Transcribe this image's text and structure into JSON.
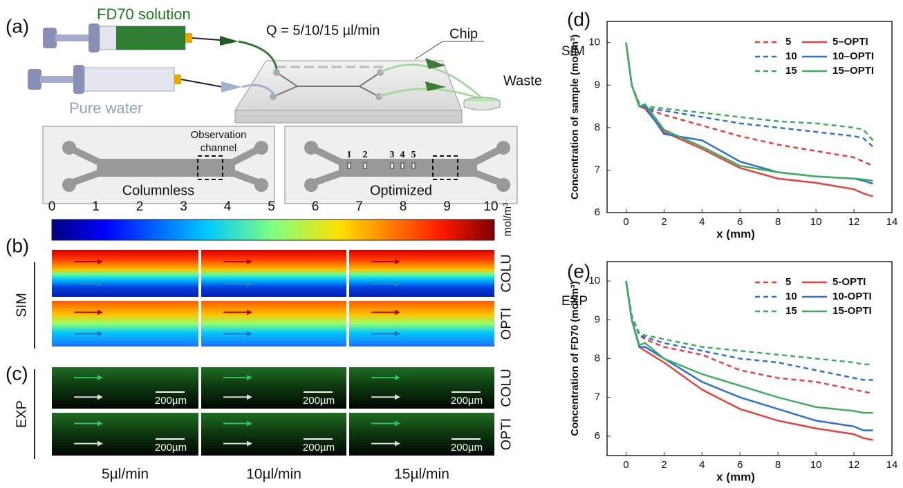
{
  "figure": {
    "panel_labels": [
      "(a)",
      "(b)",
      "(c)"
    ],
    "schematic": {
      "syringe_1": "FD70 solution",
      "syringe_2": "Pure water",
      "flow": "Q = 5/10/15 µl/min",
      "chip": "Chip",
      "waste": "Waste",
      "observation": [
        "Observation",
        "channel"
      ],
      "columnless": "Columnless",
      "optimized": "Optimized",
      "sites": [
        "1",
        "2",
        "3",
        "4",
        "5"
      ]
    },
    "colorbar": {
      "ticks": [
        0,
        1,
        2,
        3,
        4,
        5,
        6,
        7,
        8,
        9,
        10
      ],
      "unit": "mol/m³"
    },
    "rows": {
      "sim": "SIM",
      "exp": "EXP",
      "colu": "COLU",
      "opti": "OPTI"
    },
    "scale_bar": "200µm",
    "columns": [
      "5µl/min",
      "10µl/min",
      "15µl/min"
    ]
  },
  "chart_data": [
    {
      "type": "line",
      "panel": "(d)",
      "annotation": "SIM",
      "x_label": "x (mm)",
      "y_label": "Concentration of sample (mol/m³)",
      "x": [
        0,
        0.3,
        0.7,
        1,
        2,
        4,
        6,
        8,
        10,
        12,
        12.5,
        13
      ],
      "xlim": [
        -1,
        14
      ],
      "xticks": [
        0,
        2,
        4,
        6,
        8,
        10,
        12,
        14
      ],
      "ylim": [
        6,
        10.5
      ],
      "yticks": [
        6,
        7,
        8,
        9,
        10
      ],
      "legend": "upper right",
      "series": [
        {
          "name": "5",
          "color": "#e8403c",
          "dashed": true,
          "values": [
            10,
            9.0,
            8.55,
            8.45,
            8.3,
            8.05,
            7.8,
            7.6,
            7.45,
            7.3,
            7.2,
            7.1
          ]
        },
        {
          "name": "10",
          "color": "#2f6fd8",
          "dashed": true,
          "values": [
            10,
            9.0,
            8.55,
            8.45,
            8.4,
            8.25,
            8.1,
            8.0,
            7.9,
            7.8,
            7.75,
            7.55
          ]
        },
        {
          "name": "15",
          "color": "#3fae5c",
          "dashed": true,
          "values": [
            10,
            9.0,
            8.55,
            8.5,
            8.45,
            8.35,
            8.25,
            8.15,
            8.1,
            8.0,
            7.95,
            7.7
          ]
        },
        {
          "name": "5–OPTI",
          "color": "#e8403c",
          "dashed": false,
          "values": [
            10,
            9.0,
            8.5,
            8.45,
            7.9,
            7.5,
            7.05,
            6.8,
            6.7,
            6.55,
            6.45,
            6.38
          ]
        },
        {
          "name": "10–OPTI",
          "color": "#2f6fd8",
          "dashed": false,
          "values": [
            10,
            9.0,
            8.5,
            8.5,
            7.85,
            7.7,
            7.2,
            6.95,
            6.85,
            6.8,
            6.75,
            6.68
          ]
        },
        {
          "name": "15–OPTI",
          "color": "#3fae5c",
          "dashed": false,
          "values": [
            10,
            9.0,
            8.5,
            8.55,
            7.95,
            7.55,
            7.1,
            6.95,
            6.85,
            6.8,
            6.78,
            6.75
          ]
        }
      ]
    },
    {
      "type": "line",
      "panel": "(e)",
      "annotation": "EXP",
      "x_label": "x (mm)",
      "y_label": "Concentration of FD70 (mol/m³)",
      "x": [
        0,
        0.3,
        0.7,
        1,
        2,
        4,
        6,
        8,
        10,
        12,
        12.5,
        13
      ],
      "xlim": [
        -1,
        14
      ],
      "xticks": [
        0,
        2,
        4,
        6,
        8,
        10,
        12,
        14
      ],
      "ylim": [
        5.5,
        10.5
      ],
      "yticks": [
        6,
        7,
        8,
        9,
        10
      ],
      "legend": "upper right",
      "series": [
        {
          "name": "5",
          "color": "#e8403c",
          "dashed": true,
          "values": [
            10,
            9.1,
            8.6,
            8.5,
            8.3,
            8.1,
            7.7,
            7.5,
            7.4,
            7.2,
            7.15,
            7.1
          ]
        },
        {
          "name": "10",
          "color": "#2f6fd8",
          "dashed": true,
          "values": [
            10,
            9.1,
            8.6,
            8.55,
            8.4,
            8.2,
            8.0,
            7.9,
            7.7,
            7.5,
            7.45,
            7.45
          ]
        },
        {
          "name": "15",
          "color": "#3fae5c",
          "dashed": true,
          "values": [
            10,
            9.1,
            8.65,
            8.6,
            8.5,
            8.3,
            8.2,
            8.1,
            8.0,
            7.9,
            7.85,
            7.85
          ]
        },
        {
          "name": "5-OPTI",
          "color": "#e8403c",
          "dashed": false,
          "values": [
            10,
            9.0,
            8.3,
            8.2,
            7.9,
            7.2,
            6.7,
            6.4,
            6.2,
            6.05,
            5.95,
            5.9
          ]
        },
        {
          "name": "10-OPTI",
          "color": "#2f6fd8",
          "dashed": false,
          "values": [
            10,
            9.0,
            8.3,
            8.3,
            8.0,
            7.4,
            7.0,
            6.7,
            6.4,
            6.25,
            6.15,
            6.15
          ]
        },
        {
          "name": "15-OPTI",
          "color": "#3fae5c",
          "dashed": false,
          "values": [
            10,
            9.0,
            8.35,
            8.4,
            8.0,
            7.6,
            7.3,
            7.0,
            6.75,
            6.65,
            6.6,
            6.6
          ]
        }
      ]
    }
  ]
}
